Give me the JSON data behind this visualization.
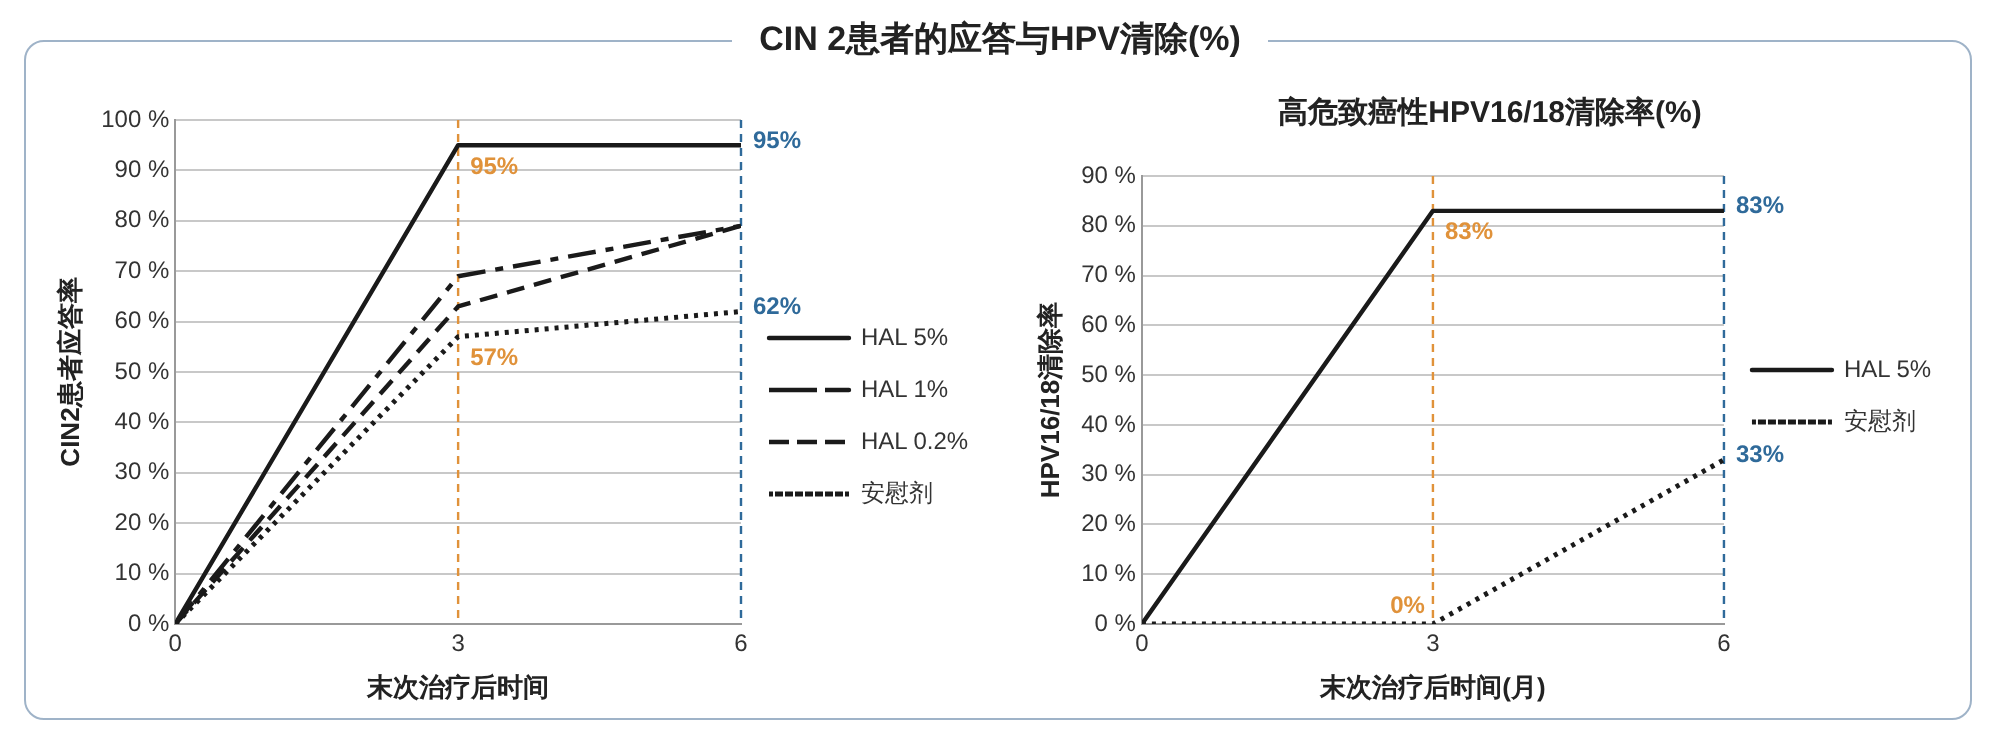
{
  "chart_data": [
    {
      "type": "line",
      "title": "CIN 2患者的应答与HPV清除(%)",
      "xlabel": "末次治疗后时间",
      "ylabel": "CIN2患者应答率",
      "x": [
        0,
        3,
        6
      ],
      "series": [
        {
          "name": "HAL 5%",
          "color": "#1a1a1a",
          "line_style": "solid",
          "values": [
            0,
            95,
            95
          ],
          "value_labels": [
            null,
            "95%",
            "95%"
          ]
        },
        {
          "name": "HAL 1%",
          "color": "#1a1a1a",
          "line_style": "dashed",
          "values": [
            0,
            69,
            79
          ]
        },
        {
          "name": "HAL 0.2%",
          "color": "#1a1a1a",
          "line_style": "dashed",
          "values": [
            0,
            63,
            79
          ]
        },
        {
          "name": "安慰剂",
          "color": "#1a1a1a",
          "line_style": "dotted",
          "values": [
            0,
            57,
            62
          ],
          "value_labels": [
            null,
            "57%",
            "62%"
          ]
        }
      ],
      "xlim": [
        0,
        6
      ],
      "xticks": [
        0,
        3,
        6
      ],
      "ylim": [
        0,
        100
      ],
      "yticks": [
        {
          "value": 0,
          "label": "0 %"
        },
        {
          "value": 10,
          "label": "10 %"
        },
        {
          "value": 20,
          "label": "20 %"
        },
        {
          "value": 30,
          "label": "30 %"
        },
        {
          "value": 40,
          "label": "40 %"
        },
        {
          "value": 50,
          "label": "50 %"
        },
        {
          "value": 60,
          "label": "60 %"
        },
        {
          "value": 70,
          "label": "70 %"
        },
        {
          "value": 80,
          "label": "80 %"
        },
        {
          "value": 90,
          "label": "90 %"
        },
        {
          "value": 100,
          "label": "100 %"
        }
      ],
      "ref_lines": [
        {
          "axis": "x",
          "value": 3,
          "color": "#e0923a",
          "line_style": "dashed"
        },
        {
          "axis": "x",
          "value": 6,
          "color": "#2f6a9a",
          "line_style": "dashed"
        }
      ],
      "grid": "y",
      "legend": "right",
      "marker": "none"
    },
    {
      "type": "line",
      "title": "高危致癌性HPV16/18清除率(%)",
      "xlabel": "末次治疗后时间(月)",
      "ylabel": "HPV16/18清除率",
      "x": [
        0,
        3,
        6
      ],
      "series": [
        {
          "name": "HAL 5%",
          "color": "#1a1a1a",
          "line_style": "solid",
          "values": [
            0,
            83,
            83
          ],
          "value_labels": [
            null,
            "83%",
            "83%"
          ]
        },
        {
          "name": "安慰剂",
          "color": "#1a1a1a",
          "line_style": "dotted",
          "values": [
            0,
            0,
            33
          ],
          "value_labels": [
            null,
            "0%",
            "33%"
          ]
        }
      ],
      "xlim": [
        0,
        6
      ],
      "xticks": [
        0,
        3,
        6
      ],
      "ylim": [
        0,
        90
      ],
      "yticks": [
        {
          "value": 0,
          "label": "0 %"
        },
        {
          "value": 10,
          "label": "10 %"
        },
        {
          "value": 20,
          "label": "20 %"
        },
        {
          "value": 30,
          "label": "30 %"
        },
        {
          "value": 40,
          "label": "40 %"
        },
        {
          "value": 50,
          "label": "50 %"
        },
        {
          "value": 60,
          "label": "60 %"
        },
        {
          "value": 70,
          "label": "70 %"
        },
        {
          "value": 80,
          "label": "80 %"
        },
        {
          "value": 90,
          "label": "90 %"
        }
      ],
      "ref_lines": [
        {
          "axis": "x",
          "value": 3,
          "color": "#e0923a",
          "line_style": "dashed"
        },
        {
          "axis": "x",
          "value": 6,
          "color": "#2f6a9a",
          "line_style": "dashed"
        }
      ],
      "grid": "y",
      "legend": "right",
      "marker": "none"
    }
  ]
}
